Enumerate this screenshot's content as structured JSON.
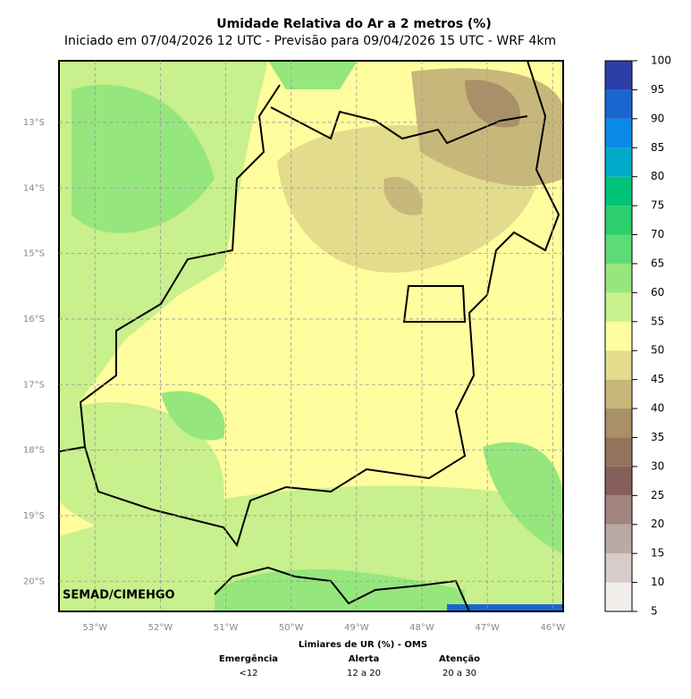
{
  "title": "Umidade Relativa do Ar a 2 metros (%)",
  "subtitle": "Iniciado em 07/04/2026 12 UTC - Previsão para 09/04/2026 15 UTC - WRF 4km",
  "credit": "SEMAD/CIMEHGO",
  "map": {
    "lonlim": [
      -53.55,
      -45.84
    ],
    "latlim": [
      -20.46,
      -12.06
    ],
    "lon_ticks": [
      {
        "value": -53,
        "label": "53°W"
      },
      {
        "value": -52,
        "label": "52°W"
      },
      {
        "value": -51,
        "label": "51°W"
      },
      {
        "value": -50,
        "label": "50°W"
      },
      {
        "value": -49,
        "label": "49°W"
      },
      {
        "value": -48,
        "label": "48°W"
      },
      {
        "value": -47,
        "label": "47°W"
      },
      {
        "value": -46,
        "label": "46°W"
      }
    ],
    "lat_ticks": [
      {
        "value": -13,
        "label": "13°S"
      },
      {
        "value": -14,
        "label": "14°S"
      },
      {
        "value": -15,
        "label": "15°S"
      },
      {
        "value": -16,
        "label": "16°S"
      },
      {
        "value": -17,
        "label": "17°S"
      },
      {
        "value": -18,
        "label": "18°S"
      },
      {
        "value": -19,
        "label": "19°S"
      },
      {
        "value": -20,
        "label": "20°S"
      }
    ]
  },
  "colorbar": {
    "bins": [
      5,
      10,
      15,
      20,
      25,
      30,
      35,
      40,
      45,
      50,
      55,
      60,
      65,
      70,
      75,
      80,
      85,
      90,
      95,
      100
    ],
    "colors": [
      "#f2eeec",
      "#d8ccca",
      "#bba9a5",
      "#a2857f",
      "#875f5a",
      "#94735d",
      "#a99068",
      "#c8b77a",
      "#e2dc8c",
      "#fffd9e",
      "#c8f08c",
      "#96e67e",
      "#5ddb77",
      "#2bcf6c",
      "#00c477",
      "#00aac8",
      "#0a8ae8",
      "#1a66d0",
      "#2c3fa8"
    ]
  },
  "thresholds": {
    "title": "Limiares de UR (%) - OMS",
    "columns": [
      {
        "name": "Emergência",
        "range": "<12"
      },
      {
        "name": "Alerta",
        "range": "12 a 20"
      },
      {
        "name": "Atenção",
        "range": "20 a 30"
      }
    ]
  }
}
